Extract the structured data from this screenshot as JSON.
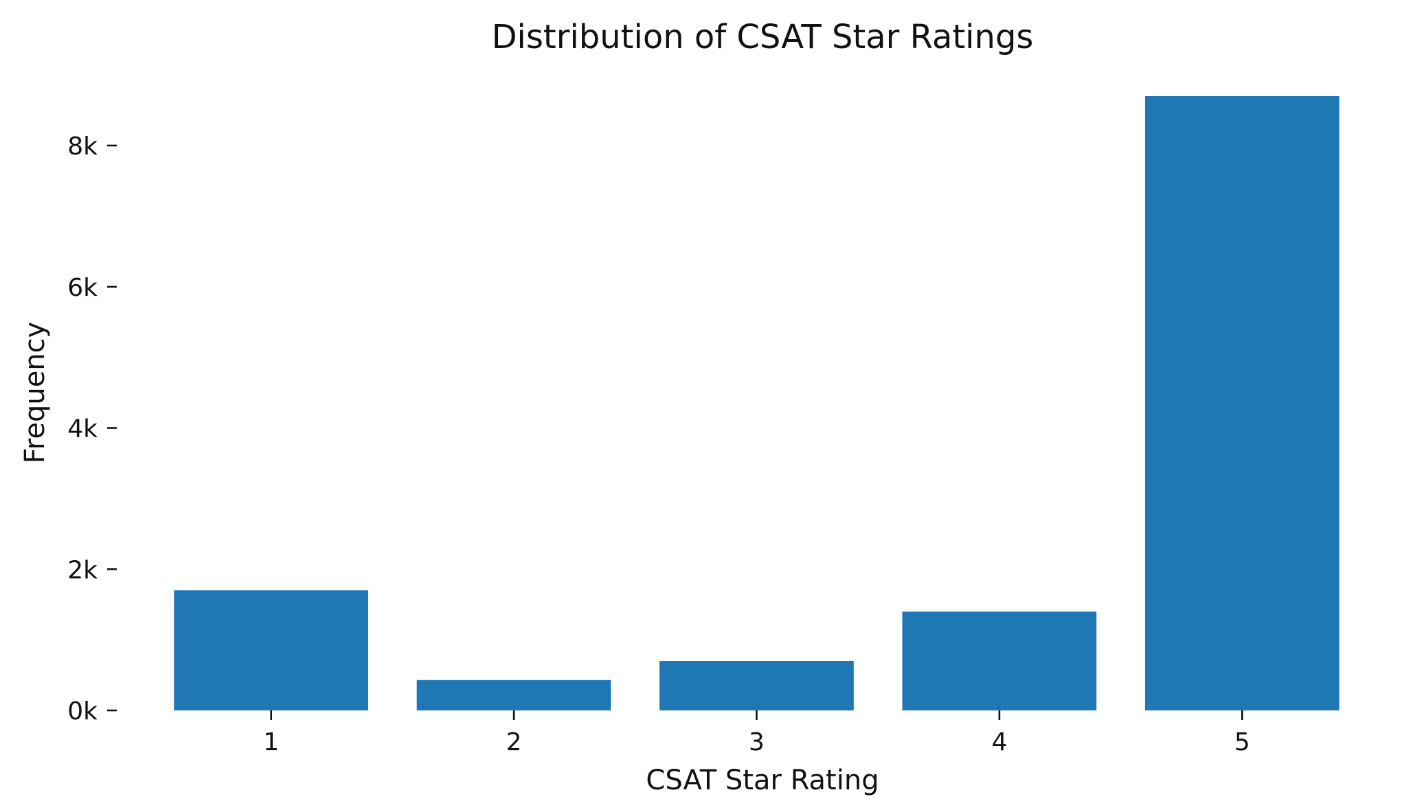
{
  "chart_data": {
    "type": "bar",
    "title": "Distribution of CSAT Star Ratings",
    "xlabel": "CSAT Star Rating",
    "ylabel": "Frequency",
    "categories": [
      "1",
      "2",
      "3",
      "4",
      "5"
    ],
    "values": [
      1700,
      430,
      700,
      1400,
      8700
    ],
    "ylim": [
      0,
      8700
    ],
    "yticks": [
      0,
      2000,
      4000,
      6000,
      8000
    ],
    "ytick_labels": [
      "0k",
      "2k",
      "4k",
      "6k",
      "8k"
    ],
    "grid": false,
    "bar_color": "#1f77b4"
  }
}
